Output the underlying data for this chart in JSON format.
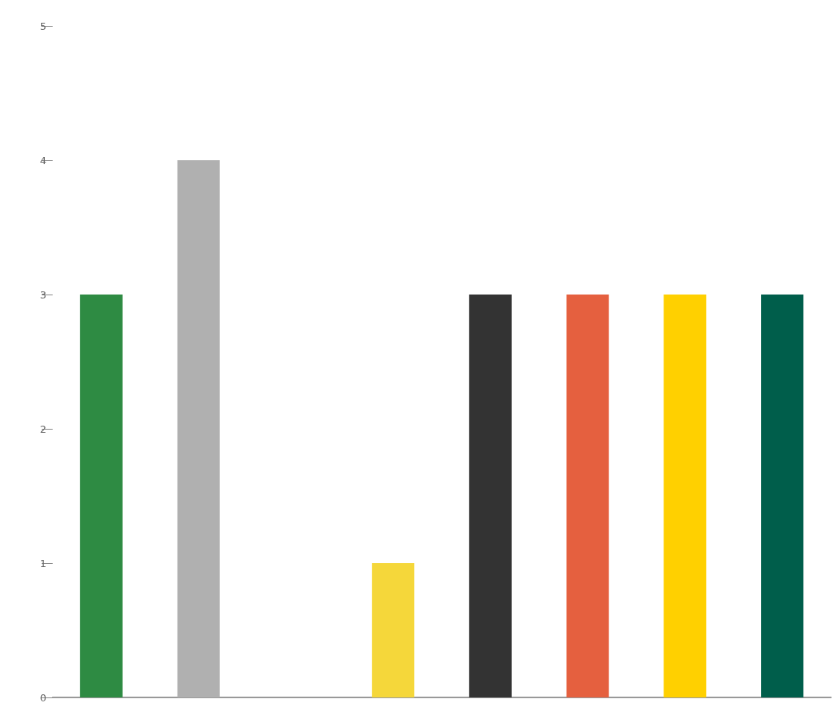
{
  "chart_data": {
    "type": "bar",
    "categories": [
      null,
      null,
      null,
      null,
      null,
      null,
      null,
      null
    ],
    "values": [
      3,
      4,
      0,
      1,
      3,
      3,
      3,
      3
    ],
    "colors": [
      "#2e8b43",
      "#b0b0b0",
      "#1a8a9a",
      "#f5d73a",
      "#333333",
      "#e5603f",
      "#ffd000",
      "#005e4b"
    ],
    "ylim": [
      0,
      5
    ],
    "yticks": [
      0,
      1,
      2,
      3,
      4,
      5
    ],
    "grid": false
  }
}
